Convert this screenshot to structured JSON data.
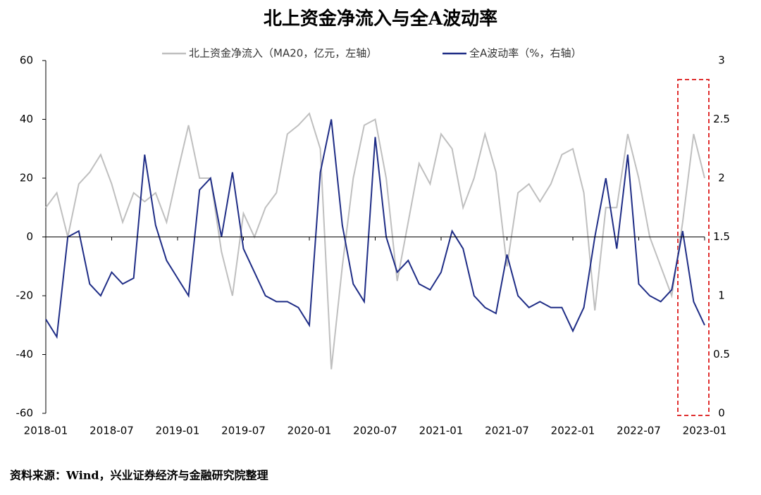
{
  "chart_data": {
    "type": "line",
    "title": "北上资金净流入与全A波动率",
    "source": "资料来源：Wind，兴业证券经济与金融研究院整理",
    "categories": [
      "2018-01",
      "2018-02",
      "2018-03",
      "2018-04",
      "2018-05",
      "2018-06",
      "2018-07",
      "2018-08",
      "2018-09",
      "2018-10",
      "2018-11",
      "2018-12",
      "2019-01",
      "2019-02",
      "2019-03",
      "2019-04",
      "2019-05",
      "2019-06",
      "2019-07",
      "2019-08",
      "2019-09",
      "2019-10",
      "2019-11",
      "2019-12",
      "2020-01",
      "2020-02",
      "2020-03",
      "2020-04",
      "2020-05",
      "2020-06",
      "2020-07",
      "2020-08",
      "2020-09",
      "2020-10",
      "2020-11",
      "2020-12",
      "2021-01",
      "2021-02",
      "2021-03",
      "2021-04",
      "2021-05",
      "2021-06",
      "2021-07",
      "2021-08",
      "2021-09",
      "2021-10",
      "2021-11",
      "2021-12",
      "2022-01",
      "2022-02",
      "2022-03",
      "2022-04",
      "2022-05",
      "2022-06",
      "2022-07",
      "2022-08",
      "2022-09",
      "2022-10",
      "2022-11",
      "2022-12",
      "2023-01"
    ],
    "xtick_every": 6,
    "series": [
      {
        "name": "北上资金净流入（MA20，亿元，左轴）",
        "color": "#bfbfbf",
        "axis": "y",
        "values": [
          10,
          15,
          0,
          18,
          22,
          28,
          18,
          5,
          15,
          12,
          15,
          5,
          22,
          38,
          20,
          20,
          -5,
          -20,
          8,
          0,
          10,
          15,
          35,
          38,
          42,
          30,
          -45,
          -10,
          20,
          38,
          40,
          20,
          -15,
          5,
          25,
          18,
          35,
          30,
          10,
          20,
          35,
          22,
          -10,
          15,
          18,
          12,
          18,
          28,
          30,
          15,
          -25,
          10,
          10,
          35,
          20,
          0,
          -10,
          -20,
          5,
          35,
          20
        ]
      },
      {
        "name": "全A波动率（%，右轴）",
        "color": "#1f2d86",
        "axis": "y2",
        "values": [
          0.8,
          0.65,
          1.5,
          1.55,
          1.1,
          1.0,
          1.2,
          1.1,
          1.15,
          2.2,
          1.6,
          1.3,
          1.15,
          1.0,
          1.9,
          2.0,
          1.5,
          2.05,
          1.4,
          1.2,
          1.0,
          0.95,
          0.95,
          0.9,
          0.75,
          2.05,
          2.5,
          1.6,
          1.1,
          0.95,
          2.35,
          1.5,
          1.2,
          1.3,
          1.1,
          1.05,
          1.2,
          1.55,
          1.4,
          1.0,
          0.9,
          0.85,
          1.35,
          1.0,
          0.9,
          0.95,
          0.9,
          0.9,
          0.7,
          0.9,
          1.5,
          2.0,
          1.4,
          2.2,
          1.1,
          1.0,
          0.95,
          1.05,
          1.55,
          0.95,
          0.75
        ]
      }
    ],
    "ylim": [
      -60,
      60
    ],
    "yticks": [
      -60,
      -40,
      -20,
      0,
      20,
      40,
      60
    ],
    "y2lim": [
      0,
      3
    ],
    "y2ticks": [
      0,
      0.5,
      1,
      1.5,
      2,
      2.5,
      3
    ]
  }
}
